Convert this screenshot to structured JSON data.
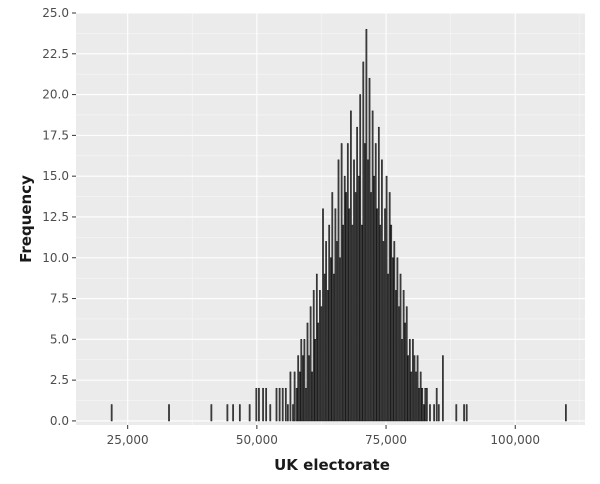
{
  "chart_data": {
    "type": "bar",
    "xlabel": "UK electorate",
    "ylabel": "Frequency",
    "xlim": [
      15000,
      113500
    ],
    "ylim": [
      -0.25,
      25
    ],
    "grid": true,
    "x_ticks": [
      25000,
      50000,
      75000,
      100000
    ],
    "x_tick_labels": [
      "25,000",
      "50,000",
      "75,000",
      "100,000"
    ],
    "y_ticks": [
      0,
      2.5,
      5,
      7.5,
      10,
      12.5,
      15,
      17.5,
      20,
      22.5,
      25
    ],
    "y_tick_labels": [
      "0.0",
      "2.5",
      "5.0",
      "7.5",
      "10.0",
      "12.5",
      "15.0",
      "17.5",
      "20.0",
      "22.5",
      "25.0"
    ],
    "bin_width": 500,
    "x": [
      21900,
      33000,
      41200,
      44300,
      45400,
      46700,
      48600,
      49900,
      50400,
      51200,
      51800,
      52600,
      53800,
      54400,
      55000,
      55600,
      56000,
      56500,
      57000,
      57300,
      57700,
      58000,
      58300,
      58600,
      58900,
      59200,
      59500,
      59800,
      60100,
      60400,
      60700,
      61000,
      61300,
      61600,
      61900,
      62200,
      62500,
      62800,
      63100,
      63400,
      63700,
      64000,
      64300,
      64600,
      64900,
      65200,
      65500,
      65800,
      66100,
      66400,
      66700,
      67000,
      67300,
      67600,
      67900,
      68200,
      68500,
      68800,
      69100,
      69400,
      69700,
      70000,
      70300,
      70600,
      70900,
      71200,
      71500,
      71800,
      72100,
      72400,
      72700,
      73000,
      73300,
      73600,
      73900,
      74200,
      74500,
      74800,
      75100,
      75400,
      75700,
      76000,
      76300,
      76600,
      76900,
      77200,
      77500,
      77800,
      78100,
      78400,
      78700,
      79000,
      79300,
      79600,
      79900,
      80200,
      80500,
      80800,
      81100,
      81400,
      81700,
      82000,
      82300,
      82600,
      82900,
      83500,
      84300,
      84800,
      85200,
      86000,
      88600,
      90100,
      90600,
      109800
    ],
    "values": [
      1,
      1,
      1,
      1,
      1,
      1,
      1,
      2,
      2,
      2,
      2,
      1,
      2,
      2,
      2,
      2,
      1,
      3,
      1,
      3,
      2,
      4,
      3,
      5,
      4,
      5,
      2,
      6,
      4,
      7,
      3,
      8,
      5,
      9,
      6,
      8,
      7,
      13,
      9,
      11,
      8,
      12,
      10,
      14,
      9,
      13,
      11,
      16,
      10,
      17,
      12,
      15,
      14,
      17,
      13,
      19,
      12,
      16,
      14,
      18,
      15,
      20,
      12,
      22,
      17,
      24,
      16,
      21,
      14,
      19,
      15,
      17,
      13,
      18,
      12,
      16,
      11,
      13,
      15,
      9,
      14,
      12,
      10,
      11,
      8,
      10,
      7,
      9,
      5,
      8,
      6,
      7,
      4,
      5,
      3,
      5,
      4,
      3,
      4,
      2,
      3,
      2,
      1,
      2,
      2,
      1,
      1,
      2,
      1,
      4,
      1,
      1,
      1,
      1
    ]
  }
}
